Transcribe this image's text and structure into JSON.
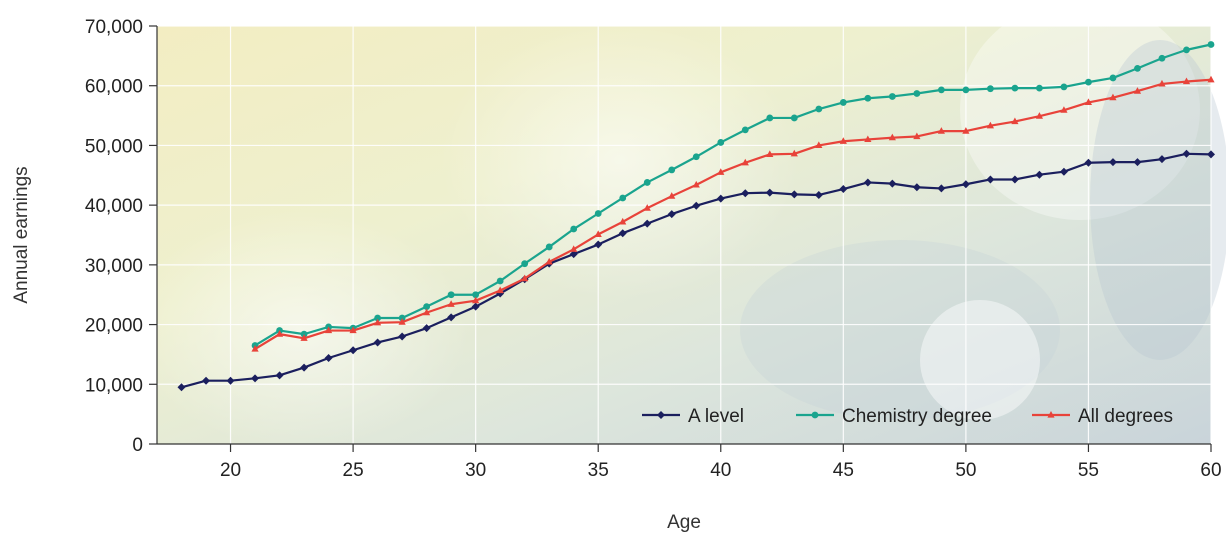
{
  "chart_data": {
    "type": "line",
    "xlabel": "Age",
    "ylabel": "Annual earnings",
    "xlim": [
      17,
      60
    ],
    "ylim": [
      0,
      70000
    ],
    "x_ticks": [
      20,
      25,
      30,
      35,
      40,
      45,
      50,
      55,
      60
    ],
    "y_ticks": [
      0,
      10000,
      20000,
      30000,
      40000,
      50000,
      60000,
      70000
    ],
    "y_tick_labels": [
      "0",
      "10,000",
      "20,000",
      "30,000",
      "40,000",
      "50,000",
      "60,000",
      "70,000"
    ],
    "grid": true,
    "legend_position": "bottom-right",
    "series": [
      {
        "name": "A level",
        "color": "#1b1f5e",
        "marker": "diamond",
        "x": [
          18,
          19,
          20,
          21,
          22,
          23,
          24,
          25,
          26,
          27,
          28,
          29,
          30,
          31,
          32,
          33,
          34,
          35,
          36,
          37,
          38,
          39,
          40,
          41,
          42,
          43,
          44,
          45,
          46,
          47,
          48,
          49,
          50,
          51,
          52,
          53,
          54,
          55,
          56,
          57,
          58,
          59,
          60
        ],
        "values": [
          9500,
          10600,
          10600,
          11000,
          11500,
          12800,
          14400,
          15700,
          17000,
          18000,
          19400,
          21200,
          23000,
          25200,
          27600,
          30200,
          31800,
          33400,
          35300,
          36900,
          38500,
          39900,
          41100,
          42000,
          42100,
          41800,
          41700,
          42700,
          43800,
          43600,
          43000,
          42800,
          43500,
          44300,
          44300,
          45100,
          45600,
          47100,
          47200,
          47200,
          47700,
          48600,
          48500
        ]
      },
      {
        "name": "Chemistry degree",
        "color": "#1aa48e",
        "marker": "circle",
        "x": [
          21,
          22,
          23,
          24,
          25,
          26,
          27,
          28,
          29,
          30,
          31,
          32,
          33,
          34,
          35,
          36,
          37,
          38,
          39,
          40,
          41,
          42,
          43,
          44,
          45,
          46,
          47,
          48,
          49,
          50,
          51,
          52,
          53,
          54,
          55,
          56,
          57,
          58,
          59,
          60
        ],
        "values": [
          16500,
          19000,
          18400,
          19600,
          19400,
          21100,
          21100,
          23000,
          25000,
          25000,
          27300,
          30200,
          33000,
          36000,
          38600,
          41200,
          43800,
          45900,
          48100,
          50500,
          52600,
          54600,
          54600,
          56100,
          57200,
          57900,
          58200,
          58700,
          59300,
          59300,
          59500,
          59600,
          59600,
          59800,
          60600,
          61300,
          62900,
          64600,
          66000,
          66900
        ]
      },
      {
        "name": "All degrees",
        "color": "#e8433a",
        "marker": "triangle",
        "x": [
          21,
          22,
          23,
          24,
          25,
          26,
          27,
          28,
          29,
          30,
          31,
          32,
          33,
          34,
          35,
          36,
          37,
          38,
          39,
          40,
          41,
          42,
          43,
          44,
          45,
          46,
          47,
          48,
          49,
          50,
          51,
          52,
          53,
          54,
          55,
          56,
          57,
          58,
          59,
          60
        ],
        "values": [
          15900,
          18400,
          17700,
          19000,
          19000,
          20300,
          20400,
          22000,
          23400,
          24000,
          25700,
          27700,
          30500,
          32600,
          35100,
          37200,
          39500,
          41500,
          43400,
          45500,
          47100,
          48500,
          48600,
          50000,
          50700,
          51000,
          51300,
          51500,
          52400,
          52400,
          53300,
          54000,
          54900,
          55900,
          57200,
          58000,
          59100,
          60300,
          60700,
          61000
        ]
      }
    ]
  }
}
